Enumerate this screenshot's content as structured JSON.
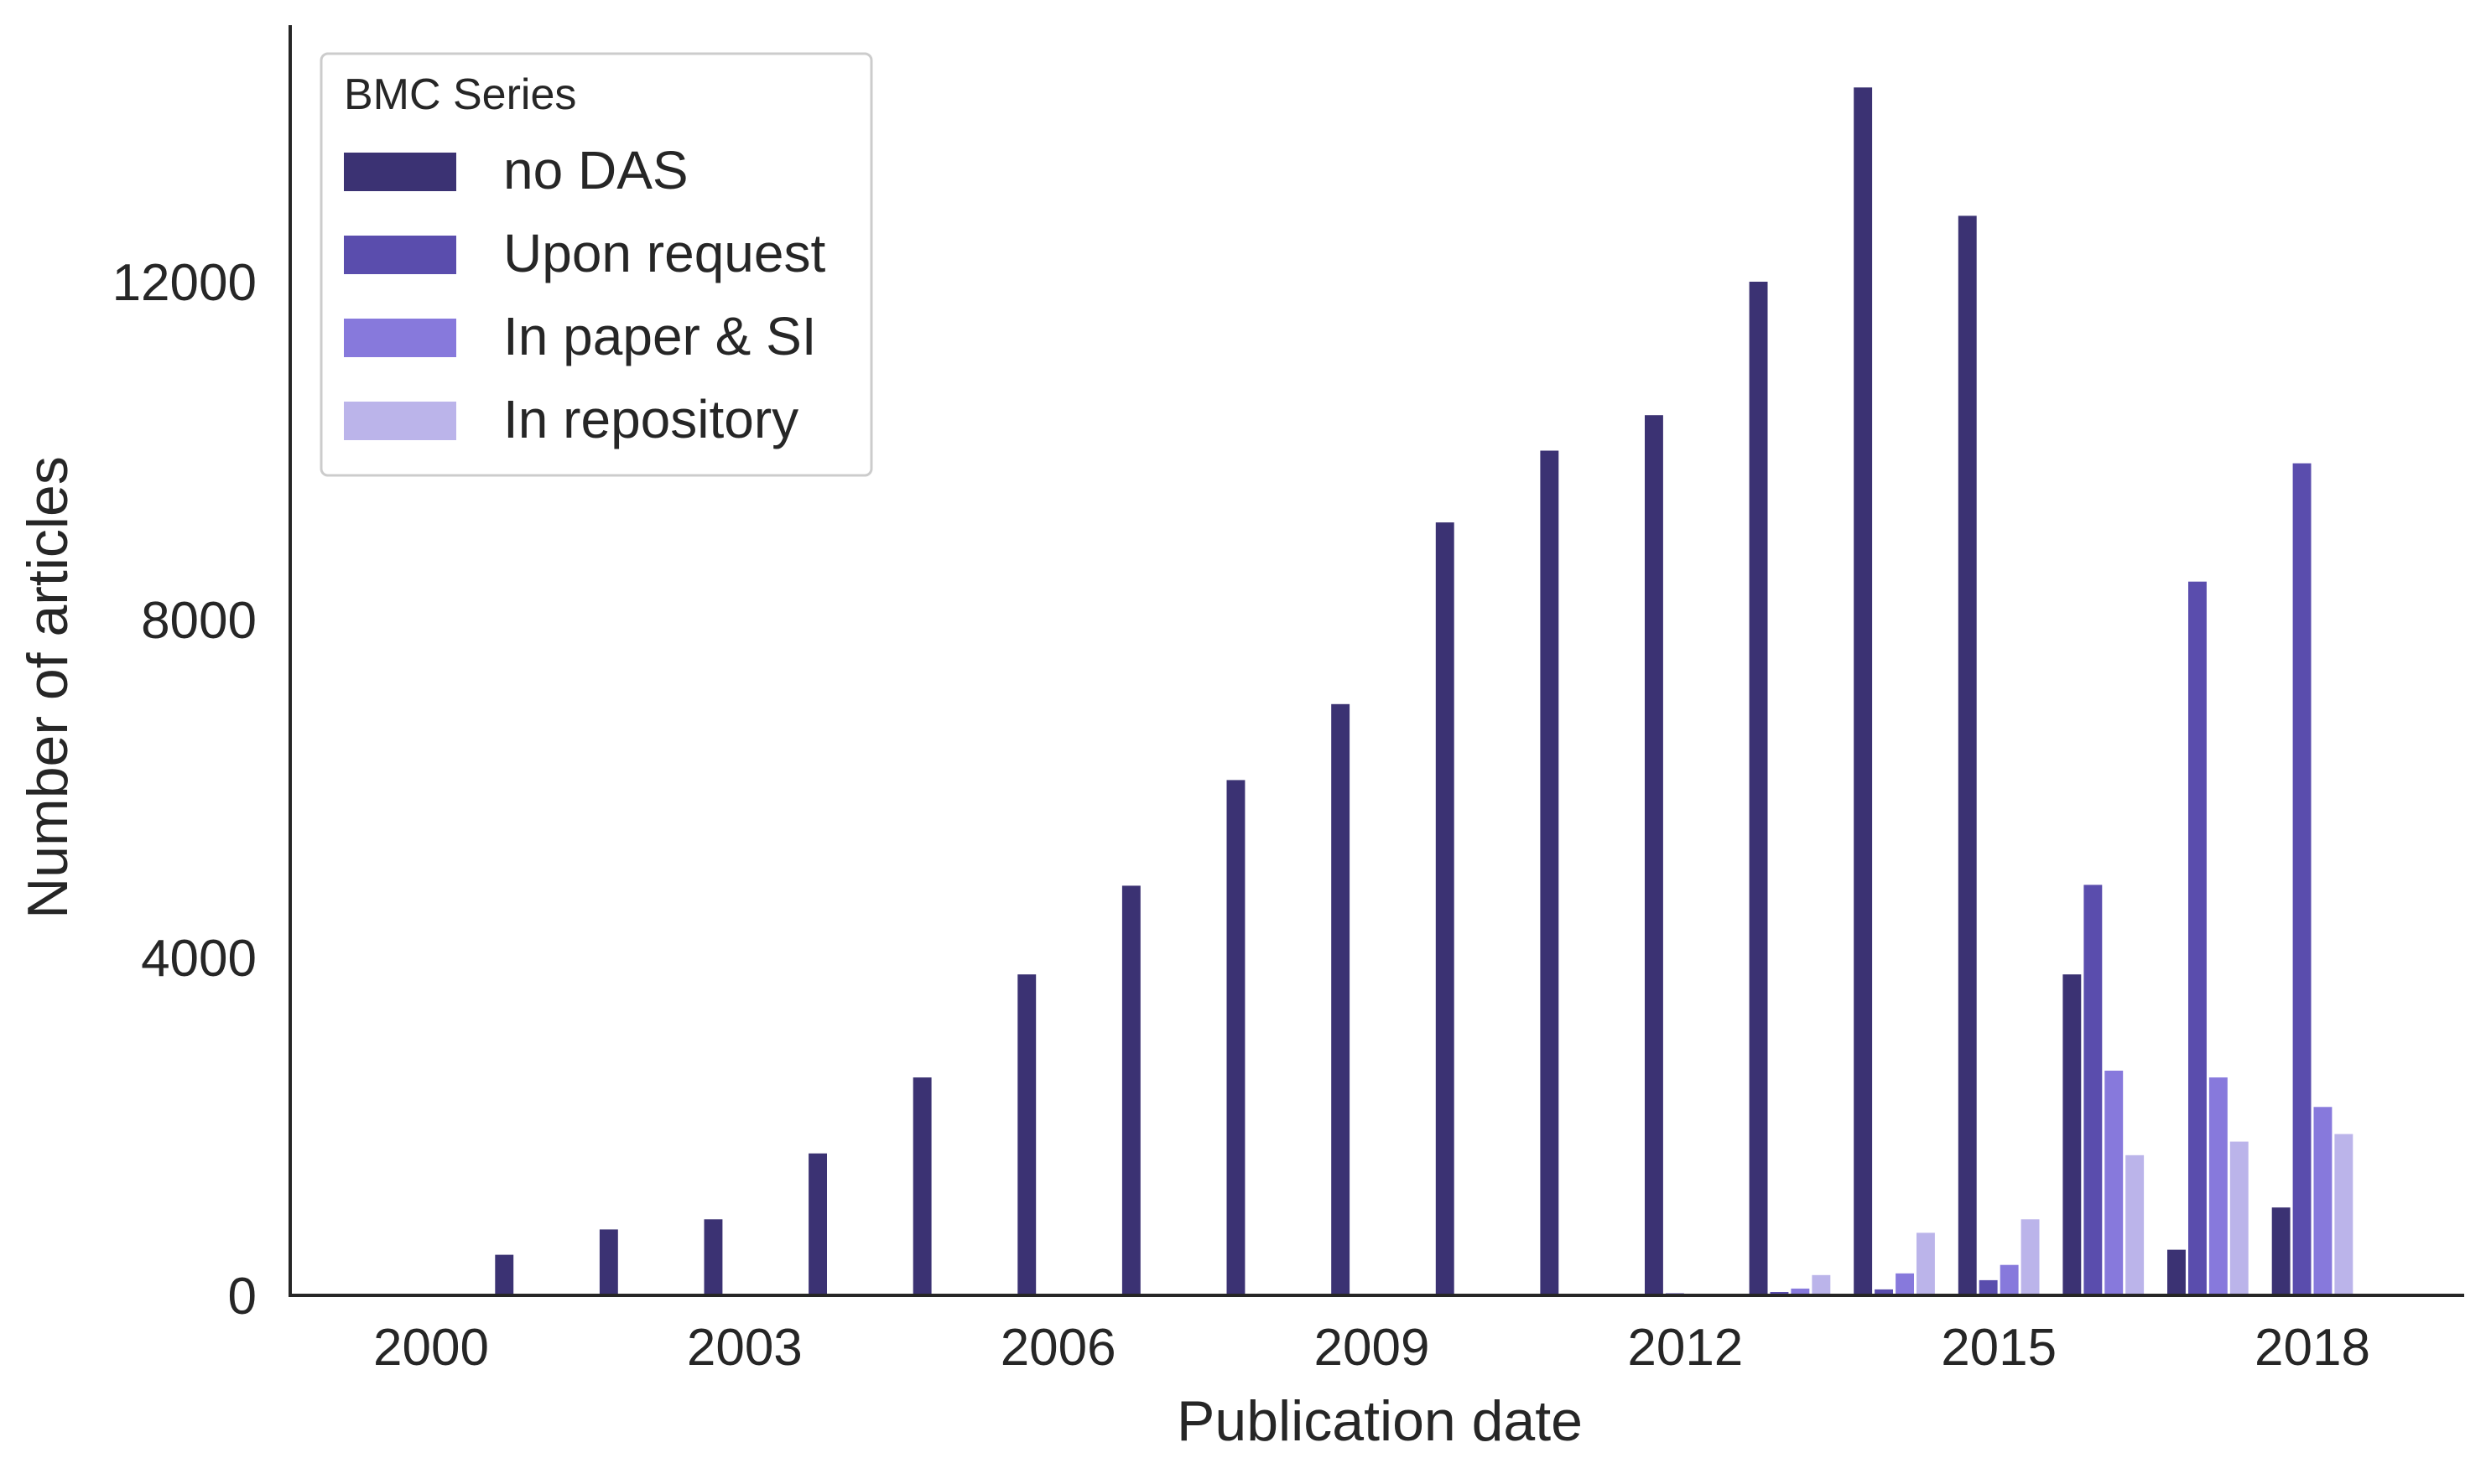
{
  "chart_data": {
    "type": "bar",
    "title": "",
    "xlabel": "Publication date",
    "ylabel": "Number of articles",
    "ylim": [
      0,
      15000
    ],
    "yticks": [
      0,
      4000,
      8000,
      12000
    ],
    "xlim": [
      1998.5,
      2019.4
    ],
    "xticks": [
      2000,
      2003,
      2006,
      2009,
      2012,
      2015,
      2018
    ],
    "grid": false,
    "legend": {
      "title": "BMC Series",
      "placement": "top-left"
    },
    "categories": [
      2000,
      2001,
      2002,
      2003,
      2004,
      2005,
      2006,
      2007,
      2008,
      2009,
      2010,
      2011,
      2012,
      2013,
      2014,
      2015,
      2016,
      2017,
      2018
    ],
    "series": [
      {
        "name": "no DAS",
        "color": "#3b3273",
        "values": [
          0,
          480,
          780,
          900,
          1680,
          2580,
          3800,
          4850,
          6100,
          7000,
          9150,
          10000,
          10420,
          12000,
          14300,
          12780,
          3800,
          540,
          1040
        ]
      },
      {
        "name": "Upon request",
        "color": "#5a4dad",
        "values": [
          0,
          0,
          0,
          0,
          0,
          0,
          0,
          0,
          0,
          0,
          0,
          0,
          25,
          40,
          70,
          180,
          4860,
          8450,
          9850
        ]
      },
      {
        "name": "In paper & SI",
        "color": "#8779dc",
        "values": [
          0,
          0,
          0,
          0,
          0,
          0,
          0,
          0,
          0,
          0,
          0,
          0,
          20,
          80,
          260,
          360,
          2660,
          2580,
          2230
        ]
      },
      {
        "name": "In repository",
        "color": "#bbb4ea",
        "values": [
          0,
          0,
          0,
          0,
          0,
          0,
          0,
          0,
          0,
          0,
          0,
          0,
          10,
          240,
          740,
          900,
          1660,
          1820,
          1910
        ]
      }
    ]
  }
}
